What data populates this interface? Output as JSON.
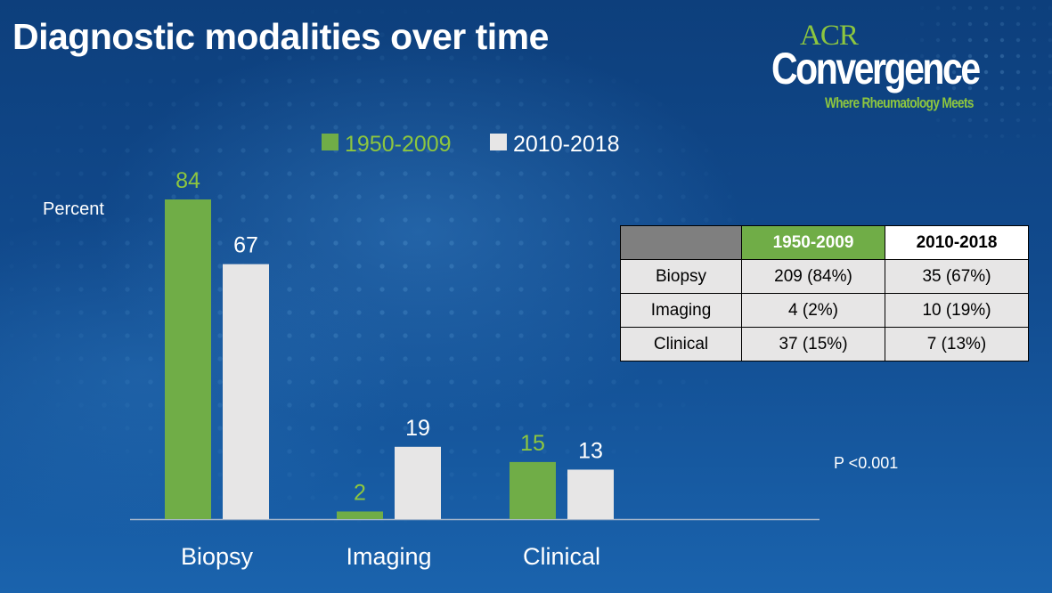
{
  "slide": {
    "title": "Diagnostic modalities over time",
    "logo": {
      "acr": "ACR",
      "name": "Convergence",
      "tagline": "Where Rheumatology Meets"
    },
    "p_value": "P <0.001"
  },
  "colors": {
    "series1": "#70ad47",
    "series2": "#e7e6e6",
    "series1_label": "#8dc63f",
    "axis": "#a6b7cc",
    "table_header_blank": "#7f7f7f"
  },
  "chart_data": {
    "type": "bar",
    "categories": [
      "Biopsy",
      "Imaging",
      "Clinical"
    ],
    "series": [
      {
        "name": "1950-2009",
        "values": [
          84,
          2,
          15
        ]
      },
      {
        "name": "2010-2018",
        "values": [
          67,
          19,
          13
        ]
      }
    ],
    "ylabel": "Percent",
    "ylim": [
      0,
      84
    ],
    "grid": false,
    "legend": "top-center",
    "data_labels": true
  },
  "table": {
    "headers": [
      "",
      "1950-2009",
      "2010-2018"
    ],
    "rows": [
      [
        "Biopsy",
        "209 (84%)",
        "35 (67%)"
      ],
      [
        "Imaging",
        "4 (2%)",
        "10 (19%)"
      ],
      [
        "Clinical",
        "37 (15%)",
        "7 (13%)"
      ]
    ]
  }
}
